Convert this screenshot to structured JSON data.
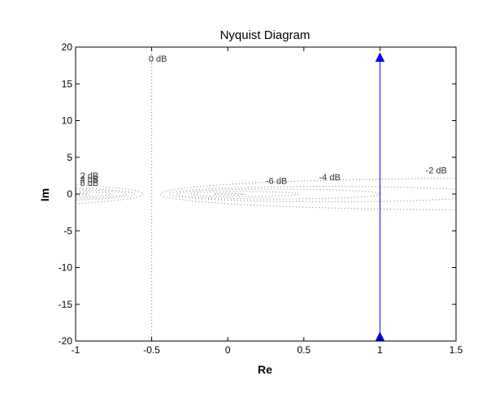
{
  "chart_data": {
    "type": "line",
    "title": "Nyquist Diagram",
    "xlabel": "Re",
    "ylabel": "Im",
    "xlim": [
      -1,
      1.5
    ],
    "ylim": [
      -20,
      20
    ],
    "xticks": [
      -1,
      -0.5,
      0,
      0.5,
      1,
      1.5
    ],
    "xtick_labels": [
      "-1",
      "-0.5",
      "0",
      "0.5",
      "1",
      "1.5"
    ],
    "yticks": [
      -20,
      -15,
      -10,
      -5,
      0,
      5,
      10,
      15,
      20
    ],
    "ytick_labels": [
      "-20",
      "-15",
      "-10",
      "-5",
      "0",
      "5",
      "10",
      "15",
      "20"
    ],
    "grid": true,
    "legend": "none",
    "series": [
      {
        "color": "#0000ff",
        "x": [
          1,
          1
        ],
        "y": [
          -19.5,
          18.5
        ],
        "arrows": [
          {
            "x": 1,
            "y": 18.5,
            "direction": "up"
          },
          {
            "x": 1,
            "y": -19.5,
            "direction": "up"
          }
        ]
      }
    ],
    "m_circles": [
      {
        "label": "0 dB",
        "label_x": -0.52,
        "label_y": 18
      },
      {
        "label": "-2 dB",
        "label_x": 1.3,
        "label_y": 2.8
      },
      {
        "label": "-4 dB",
        "label_x": 0.6,
        "label_y": 1.9
      },
      {
        "label": "-6 dB",
        "label_x": 0.25,
        "label_y": 1.4
      },
      {
        "label": "2 dB",
        "label_x": -0.97,
        "label_y": 2.1
      },
      {
        "label": "4 dB",
        "label_x": -0.97,
        "label_y": 1.6
      },
      {
        "label": "6 dB",
        "label_x": -0.97,
        "label_y": 1.1
      }
    ],
    "grid_color": "#808080"
  }
}
